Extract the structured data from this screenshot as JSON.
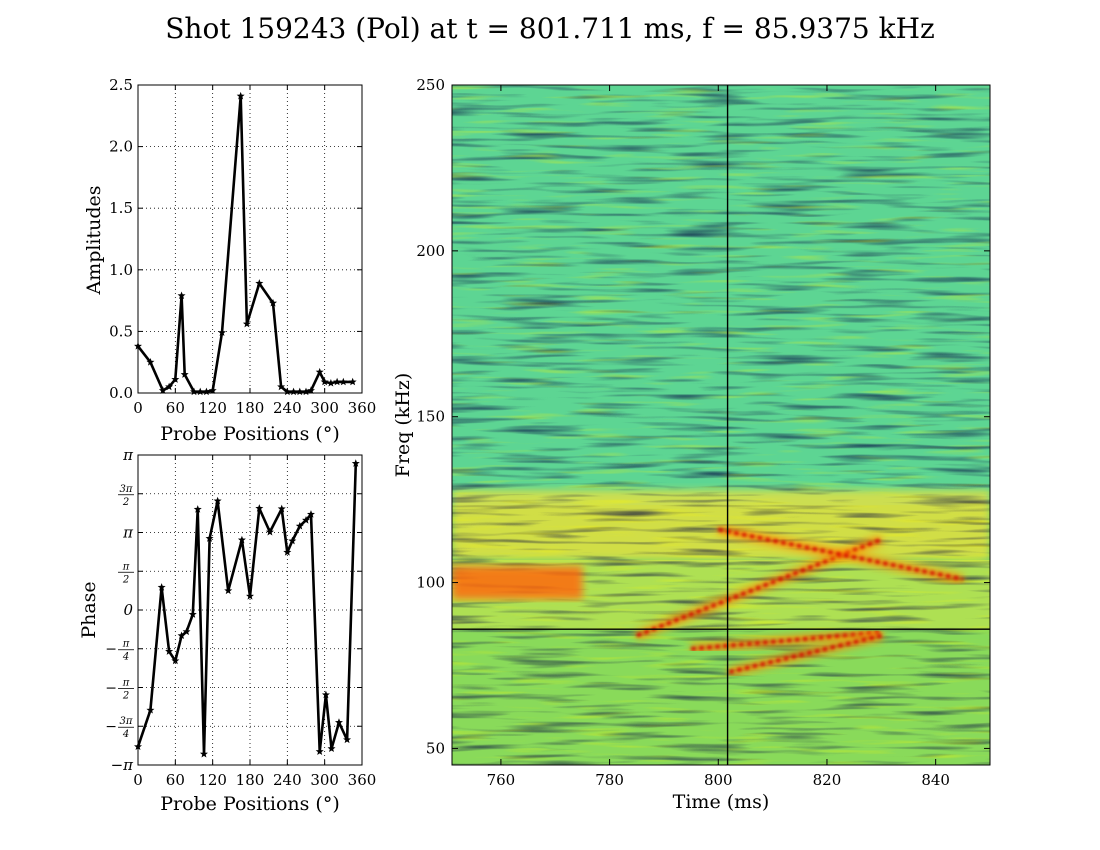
{
  "figure": {
    "title": "Shot 159243 (Pol) at t = 801.711 ms, f = 85.9375 kHz"
  },
  "chart_data": [
    {
      "id": "amplitude",
      "type": "line",
      "xlabel": "Probe Positions (°)",
      "ylabel": "Amplitudes",
      "xlim": [
        0,
        360
      ],
      "ylim": [
        0,
        2.5
      ],
      "xticks": [
        0,
        60,
        120,
        180,
        240,
        300,
        360
      ],
      "xtick_labels": [
        "0",
        "60",
        "120",
        "180",
        "240",
        "300",
        "360"
      ],
      "yticks": [
        0.0,
        0.5,
        1.0,
        1.5,
        2.0,
        2.5
      ],
      "ytick_labels": [
        "0.0",
        "0.5",
        "1.0",
        "1.5",
        "2.0",
        "2.5"
      ],
      "grid": true,
      "marker": "star",
      "line_color": "#000000",
      "x": [
        0,
        20,
        40,
        50,
        60,
        70,
        75,
        90,
        100,
        110,
        120,
        135,
        165,
        175,
        195,
        217,
        230,
        240,
        250,
        260,
        270,
        278,
        292,
        300,
        310,
        320,
        330,
        345
      ],
      "y": [
        0.38,
        0.25,
        0.02,
        0.05,
        0.11,
        0.79,
        0.15,
        0.01,
        0.01,
        0.01,
        0.02,
        0.49,
        2.41,
        0.56,
        0.89,
        0.73,
        0.05,
        0.01,
        0.01,
        0.01,
        0.01,
        0.02,
        0.17,
        0.09,
        0.08,
        0.09,
        0.09,
        0.09
      ]
    },
    {
      "id": "phase",
      "type": "line",
      "xlabel": "Probe Positions (°)",
      "ylabel": "Phase",
      "xlim": [
        0,
        360
      ],
      "ylim": [
        -3.1416,
        3.1416
      ],
      "xticks": [
        0,
        60,
        120,
        180,
        240,
        300,
        360
      ],
      "xtick_labels": [
        "0",
        "60",
        "120",
        "180",
        "240",
        "300",
        "360"
      ],
      "ytick_labels": [
        "−π",
        "−3π/4",
        "−π/2",
        "−π/4",
        "0",
        "π/2",
        "π",
        "3π/2",
        "π"
      ],
      "grid": true,
      "marker": "star",
      "line_color": "#000000",
      "x": [
        0,
        20,
        38,
        50,
        60,
        70,
        78,
        88,
        96,
        106,
        115,
        128,
        145,
        167,
        180,
        195,
        212,
        231,
        240,
        248,
        260,
        270,
        278,
        292,
        302,
        311,
        323,
        336,
        350
      ],
      "y": [
        -2.77,
        -2.03,
        0.46,
        -0.84,
        -1.03,
        -0.52,
        -0.44,
        -0.09,
        2.04,
        -2.92,
        1.45,
        2.21,
        0.39,
        1.42,
        0.28,
        2.06,
        1.58,
        2.05,
        1.17,
        1.4,
        1.7,
        1.82,
        1.94,
        -2.87,
        -1.72,
        -2.81,
        -2.28,
        -2.63,
        2.97
      ]
    },
    {
      "id": "spectrogram",
      "type": "heatmap",
      "xlabel": "Time (ms)",
      "ylabel": "Freq (kHz)",
      "xlim": [
        751,
        850
      ],
      "ylim": [
        45,
        250
      ],
      "xticks": [
        760,
        780,
        800,
        820,
        840
      ],
      "xtick_labels": [
        "760",
        "780",
        "800",
        "820",
        "840"
      ],
      "yticks": [
        50,
        100,
        150,
        200,
        250
      ],
      "ytick_labels": [
        "50",
        "100",
        "150",
        "200",
        "250"
      ],
      "colormap": "jet",
      "crosshair": {
        "t": 801.711,
        "f": 85.9375
      },
      "features": [
        {
          "kind": "band",
          "t0": 751,
          "t1": 775,
          "f": 100,
          "width": 10
        },
        {
          "kind": "ridge",
          "t0": 785,
          "f0": 84,
          "t1": 830,
          "f1": 113
        },
        {
          "kind": "ridge",
          "t0": 795,
          "f0": 80,
          "t1": 830,
          "f1": 85
        },
        {
          "kind": "ridge",
          "t0": 802,
          "f0": 73,
          "t1": 830,
          "f1": 84
        },
        {
          "kind": "ridge",
          "t0": 800,
          "f0": 116,
          "t1": 845,
          "f1": 101
        }
      ]
    }
  ]
}
